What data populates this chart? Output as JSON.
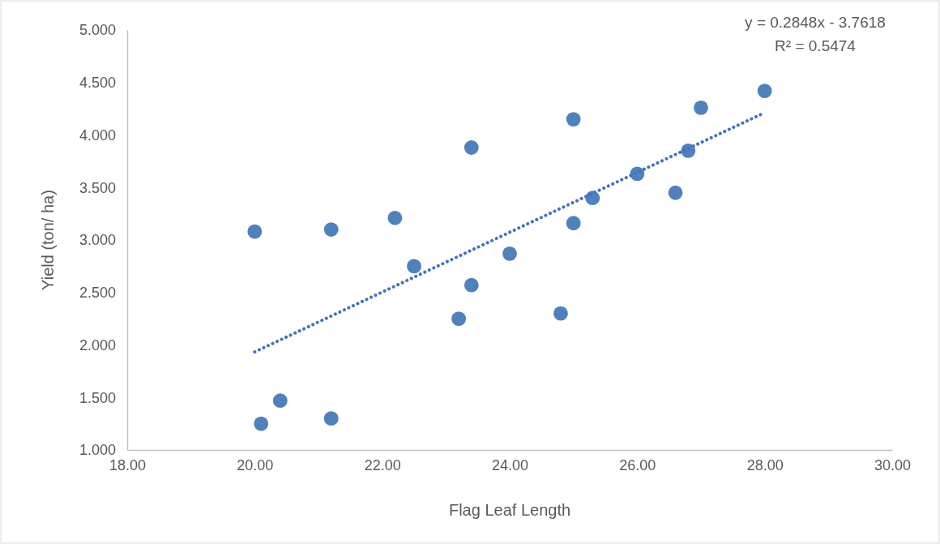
{
  "chart_data": {
    "type": "scatter",
    "xlabel": "Flag Leaf Length",
    "ylabel": "Yield (ton/ ha)",
    "xlim": [
      18,
      30
    ],
    "xticks": [
      {
        "value": 18,
        "label": "18.00"
      },
      {
        "value": 20,
        "label": "20.00"
      },
      {
        "value": 22,
        "label": "22.00"
      },
      {
        "value": 24,
        "label": "24.00"
      },
      {
        "value": 26,
        "label": "26.00"
      },
      {
        "value": 28,
        "label": "28.00"
      },
      {
        "value": 30,
        "label": "30.00"
      }
    ],
    "ylim": [
      1,
      5
    ],
    "yticks": [
      {
        "value": 1,
        "label": "1.000"
      },
      {
        "value": 1.5,
        "label": "1.500"
      },
      {
        "value": 2,
        "label": "2.000"
      },
      {
        "value": 2.5,
        "label": "2.500"
      },
      {
        "value": 3,
        "label": "3.000"
      },
      {
        "value": 3.5,
        "label": "3.500"
      },
      {
        "value": 4,
        "label": "4.000"
      },
      {
        "value": 4.5,
        "label": "4.500"
      },
      {
        "value": 5,
        "label": "5.000"
      }
    ],
    "grid": false,
    "annotations": [
      "y = 0.2848x - 3.7618",
      "R² = 0.5474"
    ],
    "series": [
      {
        "color": "#4f81bd",
        "marker": "circle",
        "x": [
          20.0,
          20.1,
          20.4,
          21.2,
          21.2,
          22.2,
          22.5,
          23.2,
          23.4,
          23.4,
          24.0,
          24.8,
          25.0,
          25.0,
          25.3,
          26.0,
          26.6,
          26.8,
          27.0,
          28.0
        ],
        "values": [
          3.08,
          1.25,
          1.47,
          3.1,
          1.3,
          3.21,
          2.75,
          2.25,
          3.88,
          2.57,
          2.87,
          2.3,
          4.15,
          3.16,
          3.4,
          3.63,
          3.45,
          3.85,
          4.26,
          4.42
        ]
      },
      {
        "type": "line",
        "color": "#4472c4",
        "marker": "none",
        "line_style": "dotted",
        "x": [
          20,
          28
        ],
        "values": [
          1.934,
          4.213
        ]
      }
    ]
  }
}
